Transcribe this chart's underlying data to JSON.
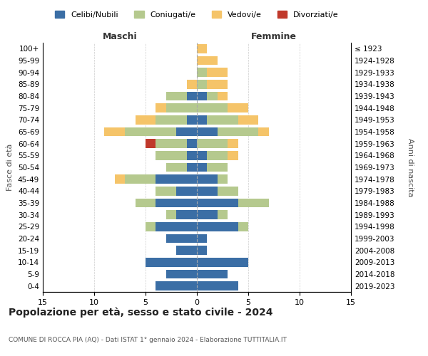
{
  "age_groups": [
    "0-4",
    "5-9",
    "10-14",
    "15-19",
    "20-24",
    "25-29",
    "30-34",
    "35-39",
    "40-44",
    "45-49",
    "50-54",
    "55-59",
    "60-64",
    "65-69",
    "70-74",
    "75-79",
    "80-84",
    "85-89",
    "90-94",
    "95-99",
    "100+"
  ],
  "birth_years": [
    "2019-2023",
    "2014-2018",
    "2009-2013",
    "2004-2008",
    "1999-2003",
    "1994-1998",
    "1989-1993",
    "1984-1988",
    "1979-1983",
    "1974-1978",
    "1969-1973",
    "1964-1968",
    "1959-1963",
    "1954-1958",
    "1949-1953",
    "1944-1948",
    "1939-1943",
    "1934-1938",
    "1929-1933",
    "1924-1928",
    "≤ 1923"
  ],
  "males": {
    "celibi": [
      4,
      3,
      5,
      2,
      3,
      4,
      2,
      4,
      2,
      4,
      1,
      1,
      1,
      2,
      1,
      0,
      1,
      0,
      0,
      0,
      0
    ],
    "coniugati": [
      0,
      0,
      0,
      0,
      0,
      1,
      1,
      2,
      2,
      3,
      2,
      3,
      3,
      5,
      3,
      3,
      2,
      0,
      0,
      0,
      0
    ],
    "vedovi": [
      0,
      0,
      0,
      0,
      0,
      0,
      0,
      0,
      0,
      1,
      0,
      0,
      0,
      2,
      2,
      1,
      0,
      1,
      0,
      0,
      0
    ],
    "divorziati": [
      0,
      0,
      0,
      0,
      0,
      0,
      0,
      0,
      0,
      0,
      0,
      0,
      1,
      0,
      0,
      0,
      0,
      0,
      0,
      0,
      0
    ]
  },
  "females": {
    "nubili": [
      4,
      3,
      5,
      1,
      1,
      4,
      2,
      4,
      2,
      2,
      1,
      1,
      0,
      2,
      1,
      0,
      1,
      0,
      0,
      0,
      0
    ],
    "coniugate": [
      0,
      0,
      0,
      0,
      0,
      1,
      1,
      3,
      2,
      1,
      2,
      2,
      3,
      4,
      3,
      3,
      1,
      1,
      1,
      0,
      0
    ],
    "vedove": [
      0,
      0,
      0,
      0,
      0,
      0,
      0,
      0,
      0,
      0,
      0,
      1,
      1,
      1,
      2,
      2,
      1,
      2,
      2,
      2,
      1
    ],
    "divorziate": [
      0,
      0,
      0,
      0,
      0,
      0,
      0,
      0,
      0,
      0,
      0,
      0,
      0,
      0,
      0,
      0,
      0,
      0,
      0,
      0,
      0
    ]
  },
  "colors": {
    "celibi": "#3B6EA5",
    "coniugati": "#B5C98E",
    "vedovi": "#F5C469",
    "divorziati": "#C0392B"
  },
  "legend_labels": [
    "Celibi/Nubili",
    "Coniugati/e",
    "Vedovi/e",
    "Divorziati/e"
  ],
  "title": "Popolazione per età, sesso e stato civile - 2024",
  "subtitle": "COMUNE DI ROCCA PIA (AQ) - Dati ISTAT 1° gennaio 2024 - Elaborazione TUTTITALIA.IT",
  "xlabel_left": "Maschi",
  "xlabel_right": "Femmine",
  "ylabel_left": "Fasce di età",
  "ylabel_right": "Anni di nascita",
  "xlim": 15,
  "background_color": "#ffffff",
  "grid_color": "#cccccc"
}
